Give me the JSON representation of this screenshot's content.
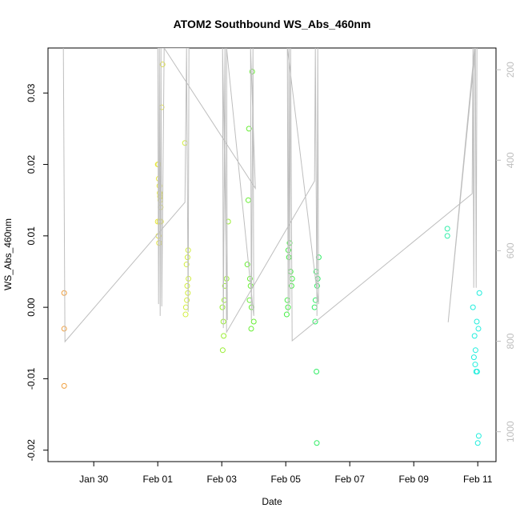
{
  "chart_data": {
    "type": "scatter",
    "title": "ATOM2 Southbound WS_Abs_460nm",
    "xlabel": "Date",
    "ylabel": "WS_Abs_460nm",
    "xlim": [
      -2.43,
      11.57
    ],
    "xticks": [
      {
        "value": -1,
        "label": "Jan 30"
      },
      {
        "value": 1,
        "label": "Feb 01"
      },
      {
        "value": 3,
        "label": "Feb 03"
      },
      {
        "value": 5,
        "label": "Feb 05"
      },
      {
        "value": 7,
        "label": "Feb 07"
      },
      {
        "value": 9,
        "label": "Feb 09"
      },
      {
        "value": 11,
        "label": "Feb 11"
      }
    ],
    "ylim": [
      -0.0216,
      0.0363
    ],
    "yticks": [
      -0.02,
      -0.01,
      {
        "value": 0,
        "label": "0.00"
      },
      0.01,
      0.02,
      0.03
    ],
    "y2lim": [
      1066,
      152
    ],
    "y2ticks": [
      200,
      400,
      600,
      800,
      1000
    ],
    "y2_color": "#bebebe",
    "series": [
      {
        "color": "#f0a040",
        "x": [
          -1.925,
          -1.925,
          -1.925
        ],
        "values": [
          0.002,
          -0.003,
          -0.011
        ]
      },
      {
        "color": "#e6e640",
        "x": [
          1.0,
          1.02,
          1.03,
          1.05,
          1.06,
          1.07,
          1.08,
          1.09,
          1.0,
          1.05,
          1.1,
          1.02,
          1.04,
          1.12,
          1.15
        ],
        "values": [
          0.02,
          0.02,
          0.018,
          0.017,
          0.016,
          0.0155,
          0.015,
          0.014,
          0.012,
          0.012,
          0.012,
          0.01,
          0.009,
          0.028,
          0.034
        ]
      },
      {
        "color": "#d2ee40",
        "x": [
          1.85,
          1.95,
          1.93,
          1.9,
          1.96,
          1.92,
          1.94,
          1.91,
          1.88,
          1.87
        ],
        "values": [
          0.023,
          0.008,
          0.007,
          0.006,
          0.004,
          0.003,
          0.002,
          0.001,
          0,
          -0.001
        ]
      },
      {
        "color": "#99ee33",
        "x": [
          3.2,
          3.15,
          3.1,
          3.08,
          3.02,
          3.05,
          3.06,
          3.03
        ],
        "values": [
          0.012,
          0.004,
          0.003,
          0.001,
          0,
          -0.002,
          -0.004,
          -0.006
        ]
      },
      {
        "color": "#66ee33",
        "x": [
          3.95,
          3.85,
          3.83,
          3.8,
          3.88,
          3.9,
          3.87,
          3.93,
          4.0,
          3.92
        ],
        "values": [
          0.033,
          0.025,
          0.015,
          0.006,
          0.004,
          0.003,
          0.001,
          0,
          -0.002,
          -0.003
        ]
      },
      {
        "color": "#44ee44",
        "x": [
          5.12,
          5.08,
          5.1,
          5.15,
          5.2,
          5.18,
          5.05,
          5.07,
          5.03
        ],
        "values": [
          0.009,
          0.008,
          0.007,
          0.005,
          0.004,
          0.003,
          0.001,
          0,
          -0.001
        ]
      },
      {
        "color": "#33ee66",
        "x": [
          6.03,
          5.95,
          6.0,
          5.98,
          5.93,
          5.9,
          5.92,
          5.96,
          5.97
        ],
        "values": [
          0.007,
          0.005,
          0.004,
          0.003,
          0.001,
          0,
          -0.002,
          -0.009,
          -0.019
        ]
      },
      {
        "color": "#33eeaa",
        "x": [
          10.05,
          10.05
        ],
        "values": [
          0.011,
          0.01
        ]
      },
      {
        "color": "#22eedd",
        "x": [
          11.05,
          10.85,
          10.97,
          10.9,
          10.93,
          10.88,
          10.92,
          10.95,
          10.98,
          11.03,
          11.0,
          11.02
        ],
        "values": [
          0.002,
          0,
          -0.002,
          -0.004,
          -0.006,
          -0.007,
          -0.008,
          -0.009,
          -0.009,
          -0.018,
          -0.019,
          -0.003
        ]
      },
      {
        "axis": "y2",
        "color": "#bebebe",
        "x": [
          -1.95,
          -1.9,
          1.85,
          1.9,
          1.95,
          1.975,
          1.0,
          1.025,
          1.05,
          1.075,
          1.1,
          1.125,
          1.2,
          4.05,
          3.9,
          3.925,
          3.975,
          4.0,
          3.15,
          3.175,
          3.025,
          3.05,
          3.1,
          3.15,
          5.9,
          5.925,
          5.975,
          6.0,
          6.025,
          5.05,
          5.075,
          5.1,
          5.125,
          5.15,
          5.2,
          10.825,
          10.85,
          10.875,
          10.9,
          10.075,
          10.925,
          10.95,
          10.975
        ],
        "values": [
          152,
          801,
          493,
          152,
          735,
          152,
          152,
          718,
          152,
          744,
          152,
          723,
          152,
          462,
          152,
          753,
          152,
          744,
          152,
          753,
          152,
          771,
          152,
          780,
          446,
          152,
          744,
          152,
          718,
          152,
          735,
          152,
          718,
          152,
          799,
          474,
          152,
          682,
          152,
          758,
          152,
          682,
          152
        ]
      }
    ]
  }
}
